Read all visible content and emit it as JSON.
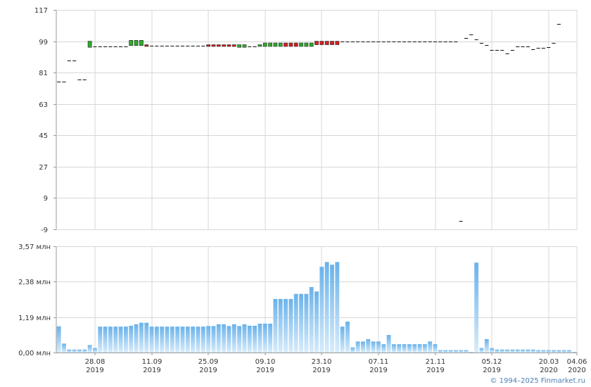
{
  "footer": {
    "copyright": "© 1994–2025 Finmarket.ru"
  },
  "colors": {
    "up": "#2eaa2e",
    "down": "#d42020",
    "neutral": "#111111",
    "volume_top": "#6ab2ea",
    "volume_bottom": "#d8ecfb",
    "grid": "#d7d7d7"
  },
  "chart_data": [
    {
      "type": "candlestick",
      "panel": "price",
      "ylim": [
        -9,
        117
      ],
      "yticks": [
        "117",
        "99",
        "81",
        "63",
        "45",
        "27",
        "9",
        "-9"
      ],
      "grid": true,
      "candles": [
        {
          "o": 76,
          "c": 76
        },
        {
          "o": 76,
          "c": 76
        },
        {
          "o": 88,
          "c": 88
        },
        {
          "o": 88,
          "c": 88
        },
        {
          "o": 77,
          "c": 77
        },
        {
          "o": 77,
          "c": 77
        },
        {
          "o": 95.5,
          "c": 99
        },
        {
          "o": 96,
          "c": 96
        },
        {
          "o": 96,
          "c": 96
        },
        {
          "o": 96,
          "c": 96
        },
        {
          "o": 96,
          "c": 96
        },
        {
          "o": 96,
          "c": 96
        },
        {
          "o": 96,
          "c": 96
        },
        {
          "o": 96,
          "c": 96
        },
        {
          "o": 96.5,
          "c": 99.5
        },
        {
          "o": 96.5,
          "c": 99.5
        },
        {
          "o": 96.5,
          "c": 99.5
        },
        {
          "o": 97,
          "c": 96
        },
        {
          "o": 96.5,
          "c": 96.5
        },
        {
          "o": 96.5,
          "c": 96.5
        },
        {
          "o": 96.5,
          "c": 96.5
        },
        {
          "o": 96.5,
          "c": 96.5
        },
        {
          "o": 96.5,
          "c": 96.5
        },
        {
          "o": 96.5,
          "c": 96.5
        },
        {
          "o": 96.5,
          "c": 96.5
        },
        {
          "o": 96.5,
          "c": 96.5
        },
        {
          "o": 96.5,
          "c": 96.5
        },
        {
          "o": 96.5,
          "c": 96.5
        },
        {
          "o": 96.5,
          "c": 96.5
        },
        {
          "o": 97,
          "c": 96
        },
        {
          "o": 97,
          "c": 96
        },
        {
          "o": 97,
          "c": 96
        },
        {
          "o": 97,
          "c": 96
        },
        {
          "o": 97,
          "c": 96
        },
        {
          "o": 97,
          "c": 96
        },
        {
          "o": 95.5,
          "c": 97
        },
        {
          "o": 95.5,
          "c": 97
        },
        {
          "o": 96,
          "c": 96
        },
        {
          "o": 96,
          "c": 96
        },
        {
          "o": 96,
          "c": 97
        },
        {
          "o": 96,
          "c": 98
        },
        {
          "o": 96,
          "c": 98
        },
        {
          "o": 96,
          "c": 98
        },
        {
          "o": 96,
          "c": 98
        },
        {
          "o": 98,
          "c": 96
        },
        {
          "o": 98,
          "c": 96
        },
        {
          "o": 98,
          "c": 96
        },
        {
          "o": 96,
          "c": 98
        },
        {
          "o": 96,
          "c": 98
        },
        {
          "o": 96,
          "c": 98
        },
        {
          "o": 99,
          "c": 97
        },
        {
          "o": 99,
          "c": 97
        },
        {
          "o": 99,
          "c": 97
        },
        {
          "o": 99,
          "c": 97
        },
        {
          "o": 99,
          "c": 97
        },
        {
          "o": 99,
          "c": 99
        },
        {
          "o": 99,
          "c": 99
        },
        {
          "o": 99,
          "c": 99
        },
        {
          "o": 99,
          "c": 99
        },
        {
          "o": 99,
          "c": 99
        },
        {
          "o": 99,
          "c": 99
        },
        {
          "o": 99,
          "c": 99
        },
        {
          "o": 99,
          "c": 99
        },
        {
          "o": 99,
          "c": 99
        },
        {
          "o": 99,
          "c": 99
        },
        {
          "o": 99,
          "c": 99
        },
        {
          "o": 99,
          "c": 99
        },
        {
          "o": 99,
          "c": 99
        },
        {
          "o": 99,
          "c": 99
        },
        {
          "o": 99,
          "c": 99
        },
        {
          "o": 99,
          "c": 99
        },
        {
          "o": 99,
          "c": 99
        },
        {
          "o": 99,
          "c": 99
        },
        {
          "o": 99,
          "c": 99
        },
        {
          "o": 99,
          "c": 99
        },
        {
          "o": 99,
          "c": 99
        },
        {
          "o": 99,
          "c": 99
        },
        {
          "o": 99,
          "c": 99
        },
        {
          "o": -4,
          "c": -4
        },
        {
          "o": 101,
          "c": 101
        },
        {
          "o": 103,
          "c": 103
        },
        {
          "o": 100,
          "c": 100
        },
        {
          "o": 98,
          "c": 98
        },
        {
          "o": 97,
          "c": 97
        },
        {
          "o": 94,
          "c": 94
        },
        {
          "o": 94,
          "c": 94
        },
        {
          "o": 94,
          "c": 94
        },
        {
          "o": 92,
          "c": 92
        },
        {
          "o": 94,
          "c": 94
        },
        {
          "o": 96,
          "c": 96
        },
        {
          "o": 96,
          "c": 96
        },
        {
          "o": 96,
          "c": 96
        },
        {
          "o": 94.5,
          "c": 94.5
        },
        {
          "o": 95,
          "c": 95
        },
        {
          "o": 95,
          "c": 95
        },
        {
          "o": 95.5,
          "c": 95.5
        },
        {
          "o": 98,
          "c": 98
        },
        {
          "o": 109,
          "c": 109
        }
      ]
    },
    {
      "type": "bar",
      "panel": "volume",
      "unit": "млн",
      "ylim": [
        0,
        3.57
      ],
      "yticks": [
        "3,57 млн",
        "2,38 млн",
        "1,19 млн",
        "0,00 млн"
      ],
      "x_labels": [
        {
          "date": "28.08",
          "year": "2019"
        },
        {
          "date": "11.09",
          "year": "2019"
        },
        {
          "date": "25.09",
          "year": "2019"
        },
        {
          "date": "09.10",
          "year": "2019"
        },
        {
          "date": "23.10",
          "year": "2019"
        },
        {
          "date": "07.11",
          "year": "2019"
        },
        {
          "date": "21.11",
          "year": "2019"
        },
        {
          "date": "05.12",
          "year": "2019"
        },
        {
          "date": "20.03",
          "year": "2020"
        },
        {
          "date": "04.06",
          "year": "2020"
        }
      ],
      "values": [
        0.88,
        0.3,
        0.1,
        0.1,
        0.1,
        0.1,
        0.25,
        0.15,
        0.87,
        0.87,
        0.87,
        0.87,
        0.87,
        0.87,
        0.9,
        0.95,
        1.0,
        1.0,
        0.87,
        0.87,
        0.87,
        0.87,
        0.87,
        0.87,
        0.87,
        0.87,
        0.87,
        0.87,
        0.87,
        0.89,
        0.89,
        0.95,
        0.95,
        0.89,
        0.95,
        0.89,
        0.95,
        0.9,
        0.9,
        0.97,
        0.97,
        0.97,
        1.8,
        1.8,
        1.8,
        1.8,
        1.97,
        1.97,
        1.97,
        2.2,
        2.05,
        2.88,
        3.04,
        2.95,
        3.04,
        0.87,
        1.04,
        0.17,
        0.37,
        0.37,
        0.45,
        0.37,
        0.37,
        0.28,
        0.59,
        0.28,
        0.28,
        0.28,
        0.28,
        0.28,
        0.28,
        0.28,
        0.37,
        0.28,
        0.08,
        0.08,
        0.08,
        0.08,
        0.08,
        0.08,
        0.02,
        3.02,
        0.15,
        0.45,
        0.15,
        0.1,
        0.1,
        0.1,
        0.1,
        0.1,
        0.1,
        0.1,
        0.1,
        0.08,
        0.08,
        0.08,
        0.08,
        0.08,
        0.08,
        0.08,
        0.02
      ]
    }
  ]
}
